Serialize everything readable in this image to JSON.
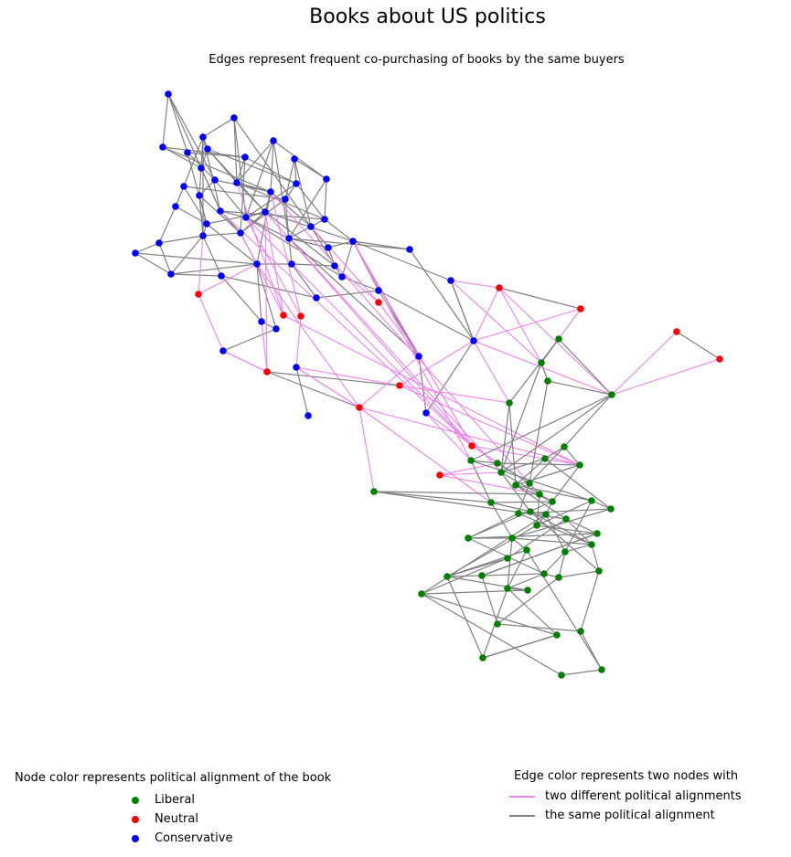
{
  "title": "Books about US politics",
  "subtitle": "Edges represent frequent co-purchasing of books by the same buyers",
  "colors": {
    "liberal": "#008000",
    "neutral": "#ff0000",
    "conservative": "#0000ff",
    "cross_edge": "#ee82ee",
    "same_edge": "#808080"
  },
  "node_legend": {
    "title": "Node color represents political alignment of the book",
    "items": [
      {
        "label": "Liberal",
        "group": "liberal"
      },
      {
        "label": "Neutral",
        "group": "neutral"
      },
      {
        "label": "Conservative",
        "group": "conservative"
      }
    ]
  },
  "edge_legend": {
    "title": "Edge color represents two nodes with",
    "items": [
      {
        "label": "two different political alignments",
        "kind": "cross_edge"
      },
      {
        "label": "the same political alignment",
        "kind": "same_edge"
      }
    ]
  }
}
